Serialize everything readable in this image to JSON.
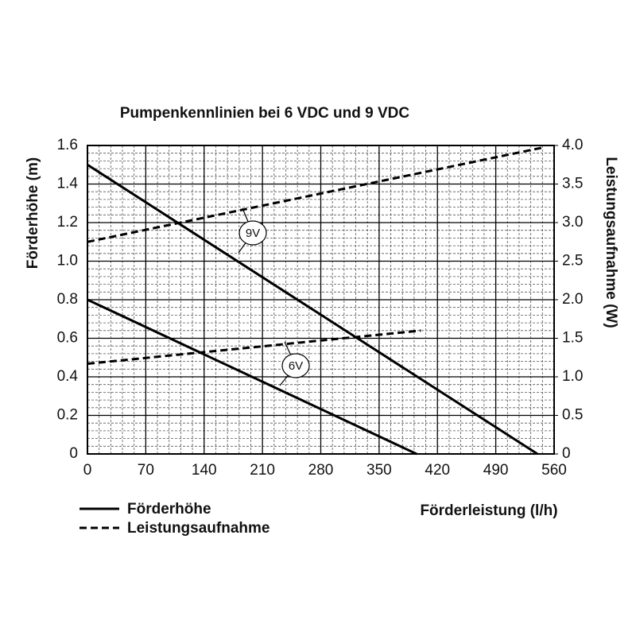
{
  "chart_data": {
    "type": "line",
    "title": "Pumpenkennlinien bei 6 VDC und 9 VDC",
    "x_label": "Förderleistung (l/h)",
    "y_label": "Förderhöhe (m)",
    "y2_label": "Leistungsaufnahme (W)",
    "xlim": [
      0,
      560
    ],
    "xticks": [
      0,
      70,
      140,
      210,
      280,
      350,
      420,
      490,
      560
    ],
    "ylim": [
      0,
      1.6
    ],
    "yticks": [
      0,
      0.2,
      0.4,
      0.6,
      0.8,
      {
        "value": 1,
        "label": "1.0"
      },
      1.2,
      1.4,
      1.6
    ],
    "y2lim": [
      0,
      4
    ],
    "y2ticks": [
      0,
      0.5,
      {
        "value": 1,
        "label": "1.0"
      },
      1.5,
      {
        "value": 2,
        "label": "2.0"
      },
      2.5,
      {
        "value": 3,
        "label": "3.0"
      },
      3.5,
      {
        "value": 4,
        "label": "4.0"
      }
    ],
    "grid": true,
    "minor_grid": 5,
    "series": [
      {
        "name": "Förderhöhe",
        "color": "#000000",
        "dashed": false,
        "axis": "y",
        "x": [
          0,
          540,
          null,
          0,
          395
        ],
        "values": [
          1.5,
          0,
          null,
          0.8,
          0
        ]
      },
      {
        "name": "Leistungsaufnahme",
        "color": "#000000",
        "dashed": true,
        "axis": "y2",
        "x": [
          0,
          545,
          null,
          0,
          400
        ],
        "values": [
          2.75,
          3.97,
          null,
          1.17,
          1.6
        ]
      }
    ],
    "annotations": [
      "9V",
      "6V"
    ]
  }
}
